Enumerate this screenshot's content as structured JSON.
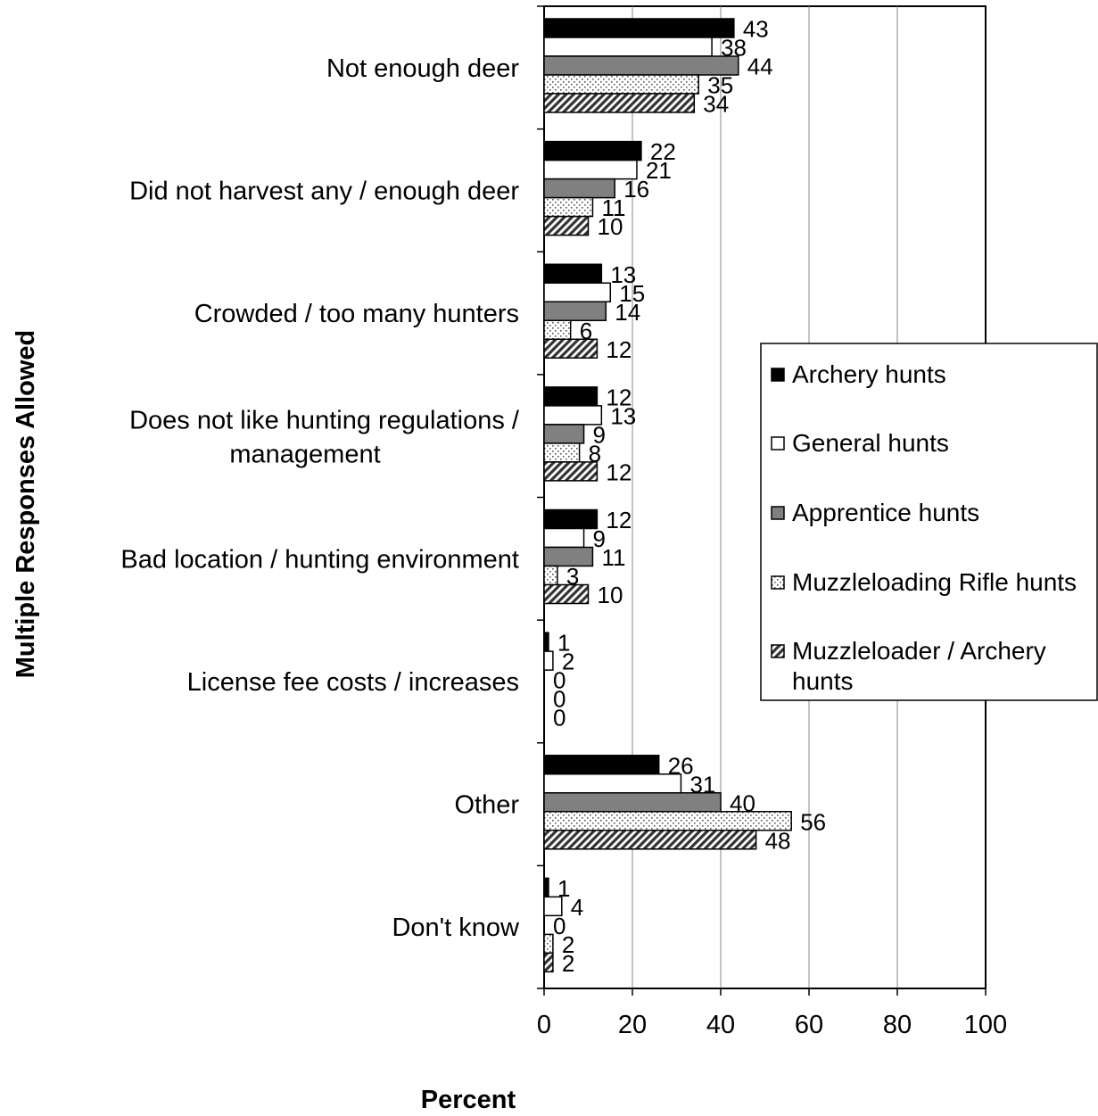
{
  "chart_data": {
    "type": "bar",
    "orientation": "horizontal",
    "title": "",
    "xlabel": "Percent",
    "ylabel": "Multiple Responses Allowed",
    "xlim": [
      0,
      100
    ],
    "xticks": [
      "0",
      "20",
      "40",
      "60",
      "80",
      "100"
    ],
    "grid": true,
    "legend_position": "right",
    "categories": [
      [
        "Not enough deer"
      ],
      [
        "Did not harvest any / enough deer"
      ],
      [
        "Crowded / too many hunters"
      ],
      [
        "Does not like hunting regulations /",
        "management"
      ],
      [
        "Bad location / hunting environment"
      ],
      [
        "License fee costs / increases"
      ],
      [
        "Other"
      ],
      [
        "Don't know"
      ]
    ],
    "series": [
      {
        "name": "Archery hunts",
        "pattern": "solid-black",
        "values": [
          43,
          22,
          13,
          12,
          12,
          1,
          26,
          1
        ]
      },
      {
        "name": "General hunts",
        "pattern": "white",
        "values": [
          38,
          21,
          15,
          13,
          9,
          2,
          31,
          4
        ]
      },
      {
        "name": "Apprentice hunts",
        "pattern": "gray",
        "values": [
          44,
          16,
          14,
          9,
          11,
          0,
          40,
          0
        ]
      },
      {
        "name": "Muzzleloading Rifle hunts",
        "pattern": "dots",
        "values": [
          35,
          11,
          6,
          8,
          3,
          0,
          56,
          2
        ]
      },
      {
        "name": "Muzzleloader / Archery hunts",
        "pattern": "diagonal",
        "legend_lines": [
          "Muzzleloader / Archery",
          "hunts"
        ],
        "values": [
          34,
          10,
          12,
          12,
          10,
          0,
          48,
          2
        ]
      }
    ]
  }
}
